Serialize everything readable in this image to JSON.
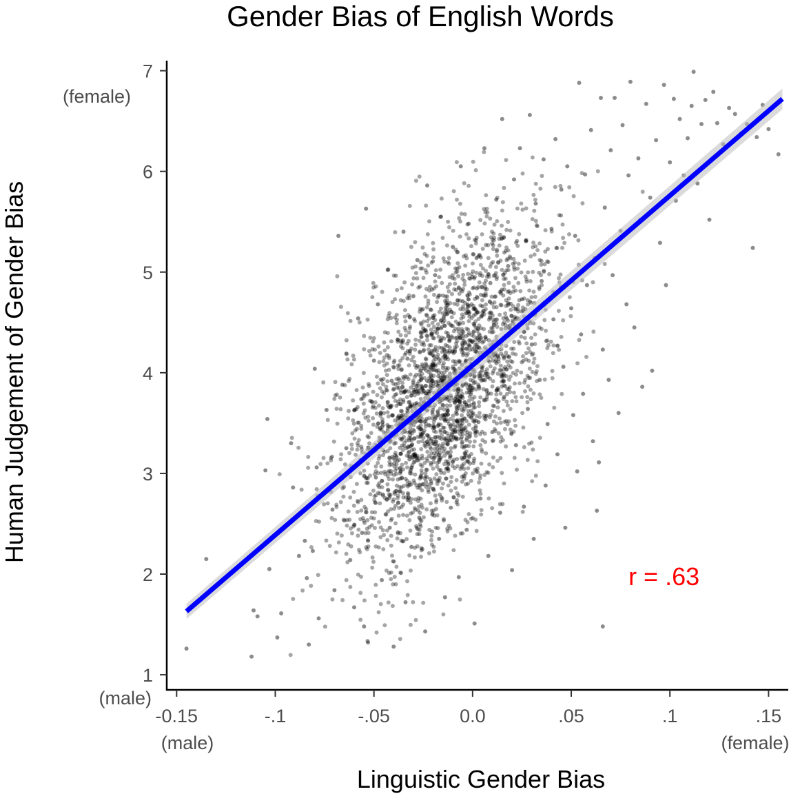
{
  "chart_data": {
    "type": "scatter",
    "title": "Gender Bias of English Words",
    "xlabel": "Linguistic Gender Bias",
    "ylabel": "Human Judgement of Gender Bias",
    "xlim": [
      -0.155,
      0.16
    ],
    "ylim": [
      0.85,
      7.1
    ],
    "x_ticks": [
      {
        "value": -0.15,
        "label": "-0.15"
      },
      {
        "value": -0.1,
        "label": "-.1"
      },
      {
        "value": -0.05,
        "label": "-.05"
      },
      {
        "value": 0.0,
        "label": "0.0"
      },
      {
        "value": 0.05,
        "label": ".05"
      },
      {
        "value": 0.1,
        "label": ".1"
      },
      {
        "value": 0.15,
        "label": ".15"
      }
    ],
    "y_ticks": [
      {
        "value": 1,
        "label": "1"
      },
      {
        "value": 2,
        "label": "2"
      },
      {
        "value": 3,
        "label": "3"
      },
      {
        "value": 4,
        "label": "4"
      },
      {
        "value": 5,
        "label": "5"
      },
      {
        "value": 6,
        "label": "6"
      },
      {
        "value": 7,
        "label": "7"
      }
    ],
    "x_end_labels": {
      "low": "(male)",
      "high": "(female)"
    },
    "y_end_labels": {
      "low": "(male)",
      "high": "(female)"
    },
    "regression_line": {
      "x": [
        -0.145,
        0.157
      ],
      "y": [
        1.63,
        6.72
      ],
      "color": "#0000ff"
    },
    "annotation": {
      "text": "r = .63",
      "x": 0.097,
      "y": 1.98,
      "color": "#ff0000"
    },
    "grid": false,
    "point_color": "#000000",
    "points": [
      [
        -0.145,
        1.26
      ],
      [
        -0.135,
        2.15
      ],
      [
        -0.112,
        1.18
      ],
      [
        -0.111,
        1.64
      ],
      [
        -0.109,
        1.58
      ],
      [
        -0.104,
        3.54
      ],
      [
        -0.105,
        3.03
      ],
      [
        -0.103,
        2.05
      ],
      [
        -0.099,
        1.37
      ],
      [
        -0.097,
        1.61
      ],
      [
        -0.092,
        3.3
      ],
      [
        -0.091,
        2.86
      ],
      [
        -0.088,
        2.18
      ],
      [
        -0.085,
        2.33
      ],
      [
        -0.084,
        1.96
      ],
      [
        -0.083,
        1.3
      ],
      [
        -0.081,
        2.23
      ],
      [
        -0.08,
        4.04
      ],
      [
        -0.079,
        3.06
      ],
      [
        -0.078,
        1.56
      ],
      [
        -0.074,
        3.63
      ],
      [
        -0.071,
        2.64
      ],
      [
        -0.07,
        1.84
      ],
      [
        -0.068,
        5.36
      ],
      [
        -0.066,
        3.88
      ],
      [
        -0.064,
        3.25
      ],
      [
        -0.062,
        2.14
      ],
      [
        -0.06,
        1.67
      ],
      [
        -0.058,
        4.54
      ],
      [
        -0.056,
        2.41
      ],
      [
        -0.055,
        1.48
      ],
      [
        -0.054,
        5.63
      ],
      [
        -0.053,
        1.32
      ],
      [
        -0.051,
        3.71
      ],
      [
        -0.05,
        4.12
      ],
      [
        -0.049,
        2.96
      ],
      [
        -0.048,
        4.68
      ],
      [
        -0.046,
        1.94
      ],
      [
        -0.044,
        3.36
      ],
      [
        -0.043,
        5.02
      ],
      [
        -0.042,
        2.46
      ],
      [
        -0.041,
        3.92
      ],
      [
        -0.04,
        1.28
      ],
      [
        -0.038,
        4.33
      ],
      [
        -0.037,
        2.82
      ],
      [
        -0.036,
        3.57
      ],
      [
        -0.035,
        5.4
      ],
      [
        -0.034,
        1.72
      ],
      [
        -0.033,
        4.14
      ],
      [
        -0.032,
        3.14
      ],
      [
        -0.031,
        2.27
      ],
      [
        -0.03,
        4.76
      ],
      [
        -0.029,
        3.81
      ],
      [
        -0.028,
        5.12
      ],
      [
        -0.027,
        2.56
      ],
      [
        -0.026,
        3.44
      ],
      [
        -0.025,
        4.44
      ],
      [
        -0.024,
        1.43
      ],
      [
        -0.023,
        5.86
      ],
      [
        -0.022,
        3.69
      ],
      [
        -0.021,
        2.9
      ],
      [
        -0.02,
        4.08
      ],
      [
        -0.019,
        4.97
      ],
      [
        -0.018,
        3.21
      ],
      [
        -0.017,
        2.35
      ],
      [
        -0.016,
        5.55
      ],
      [
        -0.015,
        3.97
      ],
      [
        -0.014,
        1.77
      ],
      [
        -0.013,
        4.58
      ],
      [
        -0.012,
        3.33
      ],
      [
        -0.011,
        2.66
      ],
      [
        -0.01,
        5.25
      ],
      [
        -0.009,
        4.21
      ],
      [
        -0.008,
        3.59
      ],
      [
        -0.007,
        1.97
      ],
      [
        -0.006,
        6.05
      ],
      [
        -0.005,
        4.71
      ],
      [
        -0.004,
        3.16
      ],
      [
        -0.003,
        2.44
      ],
      [
        -0.002,
        5.48
      ],
      [
        -0.001,
        3.87
      ],
      [
        0.0,
        4.31
      ],
      [
        0.001,
        1.51
      ],
      [
        0.002,
        5.14
      ],
      [
        0.003,
        3.51
      ],
      [
        0.004,
        2.75
      ],
      [
        0.005,
        4.66
      ],
      [
        0.006,
        6.23
      ],
      [
        0.007,
        3.99
      ],
      [
        0.008,
        2.18
      ],
      [
        0.009,
        4.89
      ],
      [
        0.01,
        3.41
      ],
      [
        0.012,
        5.72
      ],
      [
        0.013,
        4.16
      ],
      [
        0.014,
        2.61
      ],
      [
        0.015,
        6.52
      ],
      [
        0.016,
        3.76
      ],
      [
        0.018,
        5.06
      ],
      [
        0.019,
        4.47
      ],
      [
        0.02,
        2.04
      ],
      [
        0.021,
        5.92
      ],
      [
        0.022,
        3.28
      ],
      [
        0.024,
        6.23
      ],
      [
        0.025,
        4.73
      ],
      [
        0.026,
        2.67
      ],
      [
        0.027,
        5.31
      ],
      [
        0.028,
        3.64
      ],
      [
        0.029,
        6.56
      ],
      [
        0.03,
        4.28
      ],
      [
        0.031,
        2.35
      ],
      [
        0.032,
        5.68
      ],
      [
        0.034,
        3.93
      ],
      [
        0.035,
        4.91
      ],
      [
        0.036,
        6.12
      ],
      [
        0.037,
        2.88
      ],
      [
        0.038,
        3.49
      ],
      [
        0.04,
        5.43
      ],
      [
        0.041,
        4.53
      ],
      [
        0.042,
        6.32
      ],
      [
        0.043,
        3.19
      ],
      [
        0.045,
        5.82
      ],
      [
        0.046,
        4.06
      ],
      [
        0.047,
        2.46
      ],
      [
        0.048,
        6.05
      ],
      [
        0.05,
        4.64
      ],
      [
        0.051,
        3.58
      ],
      [
        0.052,
        5.36
      ],
      [
        0.053,
        3.02
      ],
      [
        0.054,
        6.88
      ],
      [
        0.055,
        4.38
      ],
      [
        0.056,
        3.79
      ],
      [
        0.057,
        5.97
      ],
      [
        0.058,
        4.87
      ],
      [
        0.06,
        6.41
      ],
      [
        0.061,
        3.32
      ],
      [
        0.062,
        5.14
      ],
      [
        0.063,
        2.63
      ],
      [
        0.064,
        3.11
      ],
      [
        0.065,
        6.73
      ],
      [
        0.066,
        4.23
      ],
      [
        0.066,
        1.48
      ],
      [
        0.067,
        5.64
      ],
      [
        0.069,
        3.93
      ],
      [
        0.07,
        6.21
      ],
      [
        0.071,
        4.97
      ],
      [
        0.072,
        6.73
      ],
      [
        0.074,
        3.6
      ],
      [
        0.075,
        5.41
      ],
      [
        0.076,
        6.46
      ],
      [
        0.078,
        4.68
      ],
      [
        0.079,
        5.96
      ],
      [
        0.08,
        6.89
      ],
      [
        0.082,
        4.45
      ],
      [
        0.084,
        6.13
      ],
      [
        0.085,
        5.52
      ],
      [
        0.086,
        3.86
      ],
      [
        0.088,
        6.67
      ],
      [
        0.09,
        5.74
      ],
      [
        0.091,
        4.02
      ],
      [
        0.093,
        6.31
      ],
      [
        0.095,
        5.29
      ],
      [
        0.097,
        6.86
      ],
      [
        0.098,
        4.87
      ],
      [
        0.1,
        6.09
      ],
      [
        0.102,
        6.72
      ],
      [
        0.103,
        5.71
      ],
      [
        0.105,
        6.52
      ],
      [
        0.107,
        5.96
      ],
      [
        0.109,
        6.33
      ],
      [
        0.111,
        6.65
      ],
      [
        0.112,
        6.99
      ],
      [
        0.114,
        5.88
      ],
      [
        0.116,
        6.47
      ],
      [
        0.118,
        6.71
      ],
      [
        0.12,
        5.52
      ],
      [
        0.122,
        6.79
      ],
      [
        0.124,
        6.48
      ],
      [
        0.127,
        6.27
      ],
      [
        0.13,
        6.63
      ],
      [
        0.133,
        6.57
      ],
      [
        0.136,
        6.38
      ],
      [
        0.139,
        6.47
      ],
      [
        0.142,
        5.24
      ],
      [
        0.144,
        6.34
      ],
      [
        0.147,
        6.66
      ],
      [
        0.15,
        6.42
      ],
      [
        0.155,
        6.17
      ]
    ]
  }
}
